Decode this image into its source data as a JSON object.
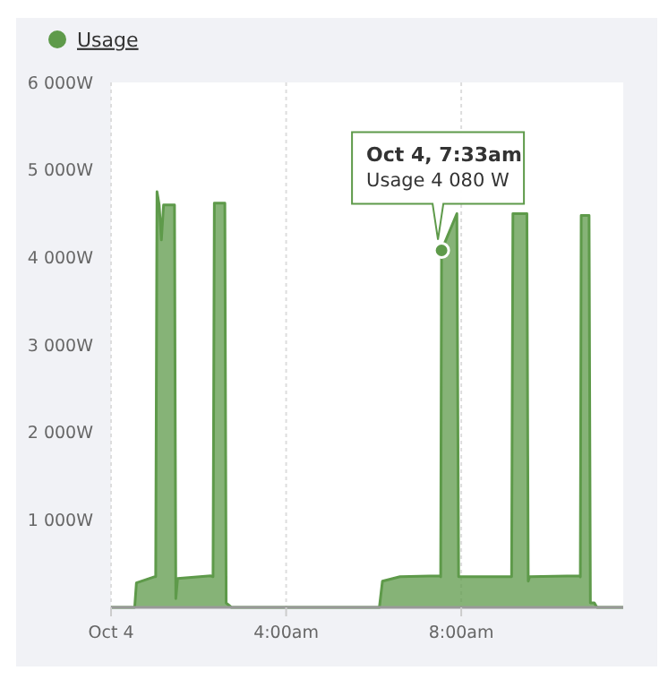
{
  "chart_data": {
    "type": "area",
    "legend": "top left",
    "grid": "x",
    "xlim": [
      0,
      11.7
    ],
    "xticks": [
      {
        "value": 0,
        "label": "Oct 4"
      },
      {
        "value": 4,
        "label": "4:00am"
      },
      {
        "value": 8,
        "label": "8:00am"
      }
    ],
    "ylim": [
      0,
      6000
    ],
    "yticks": [
      {
        "value": 1000,
        "label": "1 000W"
      },
      {
        "value": 2000,
        "label": "2 000W"
      },
      {
        "value": 3000,
        "label": "3 000W"
      },
      {
        "value": 4000,
        "label": "4 000W"
      },
      {
        "value": 5000,
        "label": "5 000W"
      },
      {
        "value": 6000,
        "label": "6 000W"
      }
    ],
    "annotations": [
      {
        "text": "Oct 4, 7:33am\nUsage 4 080 W",
        "x": 7.55,
        "y": 4080
      }
    ],
    "series": [
      {
        "name": "Usage",
        "color": "#5e9a4a",
        "x": [
          0,
          0.54,
          0.58,
          0.99,
          1.02,
          1.05,
          1.1,
          1.15,
          1.2,
          1.25,
          1.45,
          1.48,
          1.52,
          2.28,
          2.33,
          2.36,
          2.6,
          2.63,
          2.75,
          6.13,
          6.2,
          6.6,
          7.5,
          7.53,
          7.55,
          7.9,
          7.94,
          7.97,
          9.13,
          9.15,
          9.18,
          9.5,
          9.53,
          9.56,
          10.7,
          10.72,
          10.74,
          10.92,
          10.95,
          11.04,
          11.1,
          11.7
        ],
        "values": [
          0,
          0,
          280,
          350,
          350,
          4750,
          4600,
          4200,
          4600,
          4600,
          4600,
          100,
          330,
          360,
          350,
          4620,
          4620,
          50,
          0,
          0,
          300,
          350,
          360,
          350,
          4080,
          4500,
          350,
          350,
          350,
          350,
          4500,
          4500,
          300,
          350,
          360,
          350,
          4480,
          4480,
          50,
          50,
          0,
          0
        ]
      }
    ]
  }
}
